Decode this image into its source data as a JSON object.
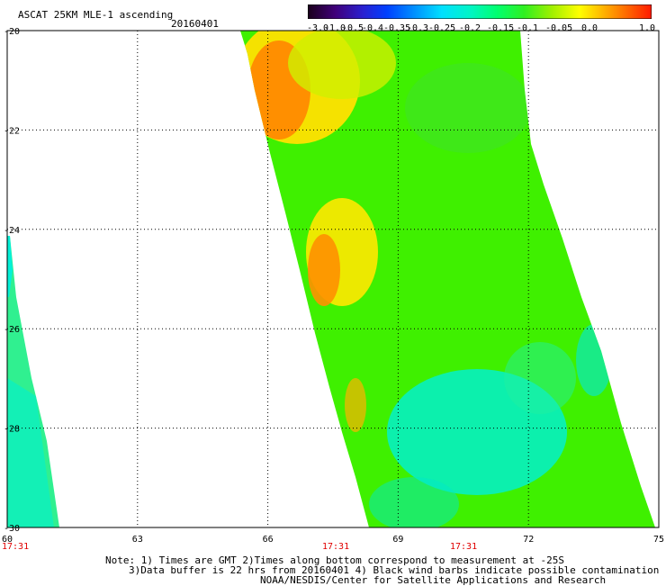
{
  "header": {
    "title": "ASCAT 25KM MLE-1 ascending",
    "date": "20160401"
  },
  "colorbar": {
    "tick_labels": [
      "-3.0",
      "-1.0",
      "-0.5",
      "-0.4",
      "-0.35",
      "-0.3",
      "-0.25",
      "-0.2",
      "-0.15",
      "-0.1",
      "-0.05",
      "0.0",
      "1.0"
    ],
    "colors": [
      "#1a001a",
      "#40007a",
      "#2020d8",
      "#0050ff",
      "#0098ff",
      "#00e0ff",
      "#00f0c0",
      "#00ff60",
      "#40f020",
      "#b0f000",
      "#ffff00",
      "#ff9a00",
      "#ff1a00"
    ]
  },
  "map": {
    "lat_labels": [
      "-20",
      "-22",
      "-24",
      "-26",
      "-28",
      "-30"
    ],
    "lon_labels": [
      "60",
      "63",
      "66",
      "69",
      "72",
      "75"
    ],
    "time_labels": [
      "17:31",
      "17:31",
      "17:31"
    ],
    "gridline_color": "#000000"
  },
  "footer": {
    "line1": "Note: 1) Times are GMT 2)Times along bottom correspond to measurement at -25S",
    "line2": "3)Data buffer is 22 hrs from 20160401 4) Black wind barbs indicate possible contamination",
    "line3": "NOAA/NESDIS/Center for Satellite Applications and Research"
  }
}
